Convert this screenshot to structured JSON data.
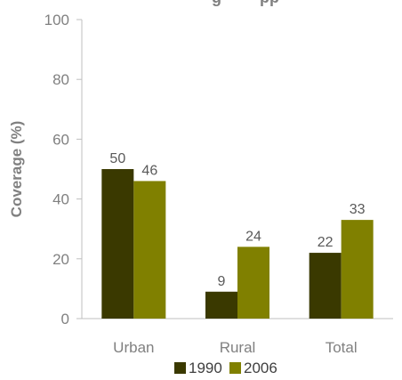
{
  "chart_data": {
    "type": "bar",
    "title": "",
    "title_visible_fragment": "g",
    "title_visible_fragment_2": "pp",
    "ylabel": "Coverage (%)",
    "xlabel": "",
    "ylim": [
      0,
      100
    ],
    "yticks": [
      0,
      20,
      40,
      60,
      80,
      100
    ],
    "categories": [
      "Urban",
      "Rural",
      "Total"
    ],
    "series": [
      {
        "name": "1990",
        "values": [
          50,
          9,
          22
        ],
        "color": "#3a3900"
      },
      {
        "name": "2006",
        "values": [
          46,
          24,
          33
        ],
        "color": "#808000"
      }
    ],
    "legend_position": "bottom",
    "grid": false
  }
}
